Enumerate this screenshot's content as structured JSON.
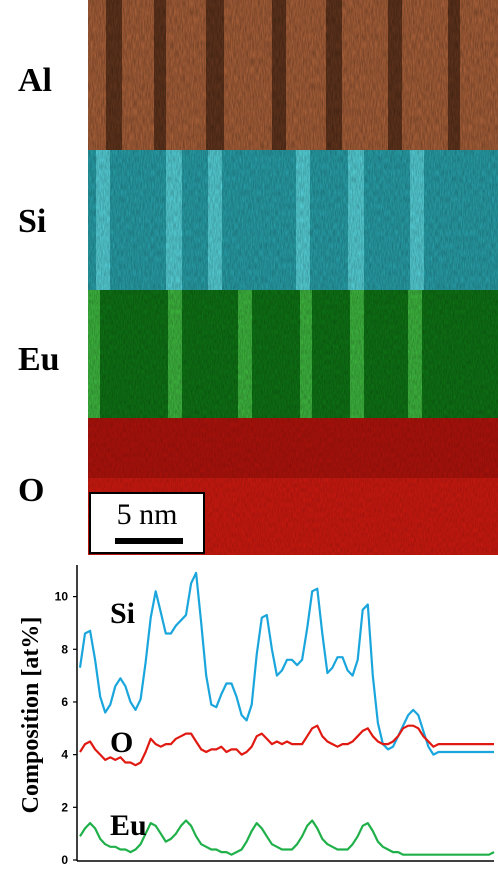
{
  "maps": [
    {
      "label": "Al",
      "color": "#b4643a"
    },
    {
      "label": "Si",
      "color": "#33c6d2"
    },
    {
      "label": "Eu",
      "color": "#119a1d"
    },
    {
      "label": "O",
      "color": "#c81414"
    }
  ],
  "scalebar": {
    "text": "5 nm"
  },
  "chart_data": {
    "type": "line",
    "ylabel": "Composition [at%]",
    "ylim": [
      0,
      11.2
    ],
    "yticks": [
      0,
      2,
      4,
      6,
      8,
      10
    ],
    "x": [
      0,
      1,
      2,
      3,
      4,
      5,
      6,
      7,
      8,
      9,
      10,
      11,
      12,
      13,
      14,
      15,
      16,
      17,
      18,
      19,
      20,
      21,
      22,
      23,
      24,
      25,
      26,
      27,
      28,
      29,
      30,
      31,
      32,
      33,
      34,
      35,
      36,
      37,
      38,
      39,
      40,
      41,
      42,
      43,
      44,
      45,
      46,
      47,
      48,
      49,
      50,
      51,
      52,
      53,
      54,
      55,
      56,
      57,
      58,
      59,
      60,
      61,
      62,
      63,
      64,
      65,
      66,
      67,
      68,
      69,
      70,
      71,
      72,
      73,
      74,
      75,
      76,
      77,
      78,
      79,
      80,
      81,
      82
    ],
    "series": [
      {
        "name": "Si",
        "color": "#1aa6dc",
        "values": [
          7.3,
          8.6,
          8.7,
          7.6,
          6.2,
          5.6,
          5.9,
          6.6,
          6.9,
          6.6,
          6.0,
          5.7,
          6.1,
          7.5,
          9.2,
          10.2,
          9.4,
          8.6,
          8.6,
          8.9,
          9.1,
          9.3,
          10.5,
          10.9,
          9.0,
          7.0,
          5.9,
          5.8,
          6.3,
          6.7,
          6.7,
          6.2,
          5.5,
          5.3,
          5.9,
          7.8,
          9.2,
          9.3,
          8.0,
          7.0,
          7.2,
          7.6,
          7.6,
          7.4,
          7.6,
          8.8,
          10.2,
          10.3,
          8.6,
          7.1,
          7.3,
          7.7,
          7.7,
          7.2,
          7.0,
          7.6,
          9.5,
          9.7,
          7.0,
          5.2,
          4.4,
          4.2,
          4.3,
          4.7,
          5.1,
          5.5,
          5.7,
          5.5,
          4.9,
          4.3,
          4.0,
          4.1,
          4.1,
          4.1,
          4.1,
          4.1,
          4.1,
          4.1,
          4.1,
          4.1,
          4.1,
          4.1,
          4.1
        ]
      },
      {
        "name": "O",
        "color": "#e01a12",
        "values": [
          4.1,
          4.4,
          4.5,
          4.2,
          4.0,
          3.8,
          3.9,
          3.8,
          3.9,
          3.7,
          3.7,
          3.6,
          3.7,
          4.1,
          4.6,
          4.4,
          4.3,
          4.4,
          4.4,
          4.6,
          4.7,
          4.8,
          4.8,
          4.5,
          4.2,
          4.1,
          4.2,
          4.2,
          4.3,
          4.1,
          4.2,
          4.2,
          4.0,
          4.1,
          4.3,
          4.7,
          4.8,
          4.6,
          4.4,
          4.5,
          4.4,
          4.5,
          4.4,
          4.4,
          4.4,
          4.7,
          5.0,
          5.1,
          4.7,
          4.5,
          4.4,
          4.3,
          4.4,
          4.4,
          4.5,
          4.7,
          4.9,
          5.0,
          4.7,
          4.5,
          4.4,
          4.4,
          4.5,
          4.7,
          5.0,
          5.1,
          5.1,
          5.0,
          4.7,
          4.5,
          4.3,
          4.4,
          4.4,
          4.4,
          4.4,
          4.4,
          4.4,
          4.4,
          4.4,
          4.4,
          4.4,
          4.4,
          4.4
        ]
      },
      {
        "name": "Eu",
        "color": "#20b04a",
        "values": [
          0.9,
          1.2,
          1.4,
          1.2,
          0.8,
          0.6,
          0.5,
          0.5,
          0.4,
          0.4,
          0.3,
          0.4,
          0.6,
          1.0,
          1.4,
          1.3,
          1.0,
          0.7,
          0.8,
          1.0,
          1.3,
          1.5,
          1.3,
          0.9,
          0.6,
          0.5,
          0.4,
          0.4,
          0.3,
          0.3,
          0.2,
          0.3,
          0.4,
          0.7,
          1.1,
          1.4,
          1.2,
          0.9,
          0.6,
          0.5,
          0.4,
          0.4,
          0.4,
          0.6,
          0.9,
          1.3,
          1.5,
          1.2,
          0.8,
          0.6,
          0.5,
          0.4,
          0.4,
          0.4,
          0.6,
          0.9,
          1.3,
          1.4,
          1.1,
          0.7,
          0.5,
          0.4,
          0.3,
          0.3,
          0.2,
          0.2,
          0.2,
          0.2,
          0.2,
          0.2,
          0.2,
          0.2,
          0.2,
          0.2,
          0.2,
          0.2,
          0.2,
          0.2,
          0.2,
          0.2,
          0.2,
          0.2,
          0.3
        ]
      }
    ]
  }
}
